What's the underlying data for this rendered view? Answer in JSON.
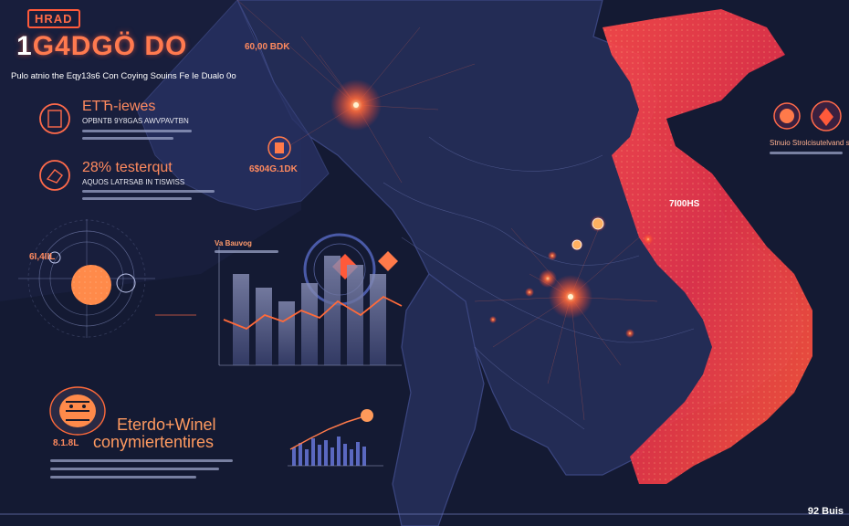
{
  "header": {
    "badge": "HRAD",
    "title_first": "1",
    "title_rest": "G4DGÖ DO",
    "subtitle": "Pulo atnio the Eqy13s6 Con Coying Souins Fe Ie Dualo 0o"
  },
  "panels": {
    "top_left_1": {
      "headline": "ETЋ-iewes",
      "sub": "OPBNTB 9Y8GAS AWVPAVTBN"
    },
    "top_left_2": {
      "headline": "28% testerqut",
      "sub": "AQUOS LATRSAB IN TISWISS"
    },
    "callout_top": "60,00 BDK",
    "callout_mid": "6$04G.1DK",
    "callout_right": "7I00HS",
    "callout_left": "6I,4IIL",
    "callout_bottom_left": "8.1.8L",
    "chart_caption": "Va Bauvog",
    "bottom_headline_1": "Eterdo+Winel",
    "bottom_headline_2": "conymiertentires",
    "right_caption": "Stnuio Strolcisutelvand surtsos",
    "corner_label": "92 Buis"
  },
  "colors": {
    "background": "#141a33",
    "land": "#232c55",
    "accent": "#ff5a3a",
    "heat": "#e8324a"
  },
  "icons": [
    "book-icon",
    "hand-icon",
    "coin-icon",
    "globe-icon",
    "tiger-icon",
    "warning-icon"
  ]
}
